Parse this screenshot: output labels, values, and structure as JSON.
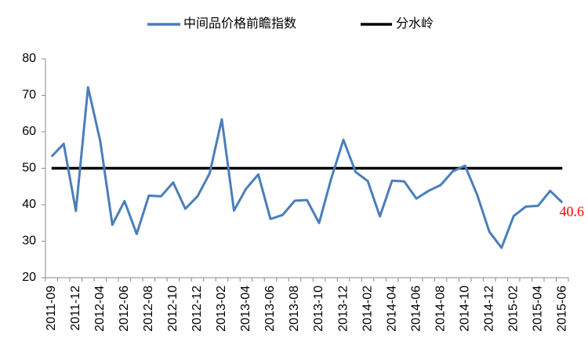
{
  "chart_data": {
    "type": "line",
    "categories": [
      "2011-09",
      null,
      "2011-12",
      null,
      "2012-04",
      null,
      "2012-06",
      null,
      "2012-08",
      null,
      "2012-10",
      null,
      "2012-12",
      null,
      "2013-02",
      null,
      "2013-04",
      null,
      "2013-06",
      null,
      "2013-08",
      null,
      "2013-10",
      null,
      "2013-12",
      null,
      "2014-02",
      null,
      "2014-04",
      null,
      "2014-06",
      null,
      "2014-08",
      null,
      "2014-10",
      null,
      "2014-12",
      null,
      "2015-02",
      null,
      "2015-04",
      null,
      "2015-06"
    ],
    "series": [
      {
        "name": "中间品价格前瞻指数",
        "color": "#4a7ebb",
        "values": [
          53.2,
          56.7,
          38.3,
          72.2,
          57.5,
          34.5,
          41,
          32,
          42.5,
          42.3,
          46.1,
          38.9,
          42.3,
          48.6,
          63.4,
          38.4,
          44.4,
          48.3,
          36.1,
          37.2,
          41.1,
          41.3,
          35,
          47.2,
          57.8,
          49,
          46.5,
          36.8,
          46.6,
          46.4,
          41.7,
          43.8,
          45.4,
          49.2,
          50.7,
          42.7,
          32.6,
          28.2,
          36.9,
          39.5,
          39.7,
          43.8,
          40.6
        ]
      }
    ],
    "reference_line": {
      "name": "分水岭",
      "value": 50,
      "color": "#000000"
    },
    "label_color": "#ff0000",
    "ylim": [
      20,
      80
    ],
    "yticks": [
      20,
      30,
      40,
      50,
      60,
      70,
      80
    ],
    "grid": false,
    "legend": "top"
  }
}
